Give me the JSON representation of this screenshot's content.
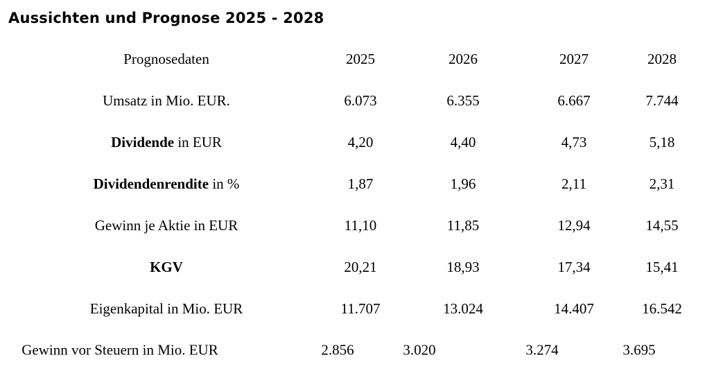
{
  "title": "Aussichten und Prognose 2025 - 2028",
  "table": {
    "header": {
      "label": "Prognosedaten",
      "years": [
        "2025",
        "2026",
        "2027",
        "2028"
      ]
    },
    "rows": [
      {
        "label_bold": "",
        "label_rest": "Umsatz in Mio. EUR.",
        "values": [
          "6.073",
          "6.355",
          "6.667",
          "7.744"
        ]
      },
      {
        "label_bold": "Dividende",
        "label_rest": " in EUR",
        "values": [
          "4,20",
          "4,40",
          "4,73",
          "5,18"
        ]
      },
      {
        "label_bold": "Dividendenrendite",
        "label_rest": " in %",
        "values": [
          "1,87",
          "1,96",
          "2,11",
          "2,31"
        ]
      },
      {
        "label_bold": "",
        "label_rest": "Gewinn je Aktie in EUR",
        "values": [
          "11,10",
          "11,85",
          "12,94",
          "14,55"
        ]
      },
      {
        "label_bold": "KGV",
        "label_rest": "",
        "values": [
          "20,21",
          "18,93",
          "17,34",
          "15,41"
        ]
      },
      {
        "label_bold": "",
        "label_rest": "Eigenkapital in Mio. EUR",
        "values": [
          "11.707",
          "13.024",
          "14.407",
          "16.542"
        ]
      }
    ],
    "last_row": {
      "label": "Gewinn vor Steuern in Mio. EUR",
      "values": [
        "2.856",
        "3.020",
        "3.274",
        "3.695"
      ]
    }
  }
}
